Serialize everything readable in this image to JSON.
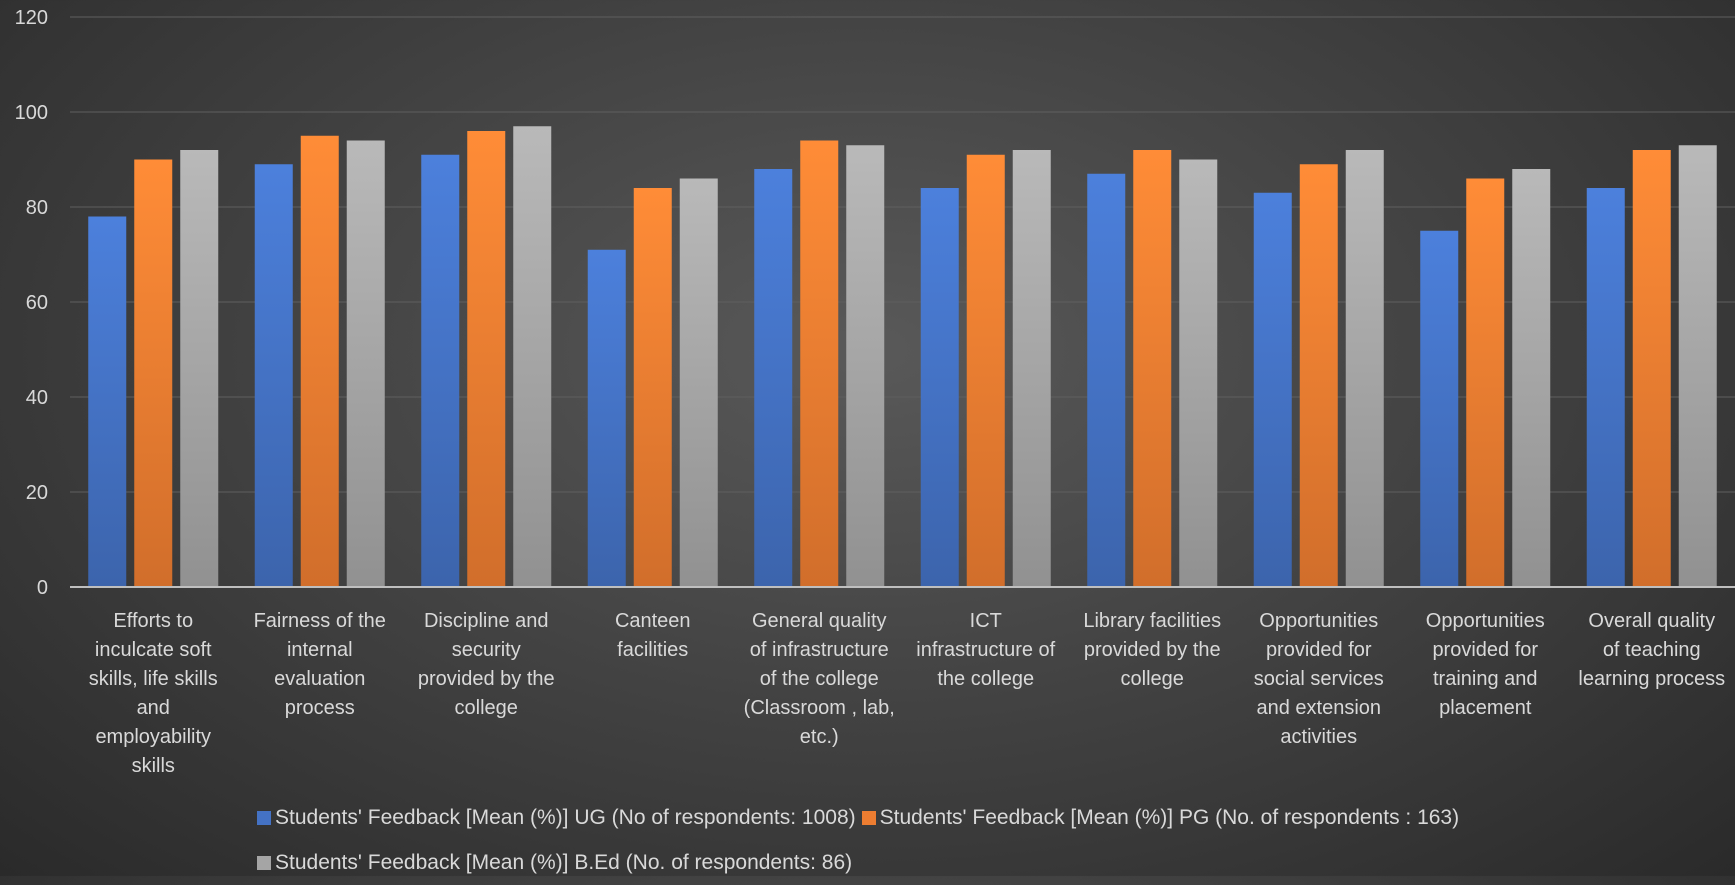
{
  "chart_data": {
    "type": "bar",
    "title": "",
    "xlabel": "",
    "ylabel": "",
    "ylim": [
      0,
      120
    ],
    "yticks": [
      "0",
      "20",
      "40",
      "60",
      "80",
      "100",
      "120"
    ],
    "grid": true,
    "legend_position": "bottom",
    "categories": [
      "Efforts to inculcate soft skills, life skills and employability skills",
      "Fairness of the internal evaluation process",
      "Discipline and security provided by the college",
      "Canteen facilities",
      "General quality of infrastructure of the college (Classroom , lab, etc.)",
      "ICT infrastructure of the college",
      "Library facilities provided by the college",
      "Opportunities provided for social services and extension activities",
      "Opportunities provided for training and placement",
      "Overall quality of teaching learning process"
    ],
    "category_lines": [
      [
        "Efforts to",
        "inculcate soft",
        "skills, life skills",
        "and",
        "employability",
        "skills"
      ],
      [
        "Fairness of the",
        "internal",
        "evaluation",
        "process"
      ],
      [
        "Discipline and",
        "security",
        "provided by the",
        "college"
      ],
      [
        "Canteen",
        "facilities"
      ],
      [
        "General quality",
        "of infrastructure",
        "of the college",
        "(Classroom , lab,",
        "etc.)"
      ],
      [
        "ICT",
        "infrastructure of",
        "the college"
      ],
      [
        "Library facilities",
        "provided by the",
        "college"
      ],
      [
        "Opportunities",
        "provided for",
        "social services",
        "and extension",
        "activities"
      ],
      [
        "Opportunities",
        "provided for",
        "training and",
        "placement"
      ],
      [
        "Overall quality",
        "of teaching",
        "learning process"
      ]
    ],
    "series": [
      {
        "name": "Students' Feedback [Mean (%)] UG (No of respondents: 1008)",
        "color": "#4472c4",
        "values": [
          78,
          89,
          91,
          71,
          88,
          84,
          87,
          83,
          75,
          84
        ]
      },
      {
        "name": "Students' Feedback [Mean (%)] PG (No. of respondents : 163)",
        "color": "#ed7d31",
        "values": [
          90,
          95,
          96,
          84,
          94,
          91,
          92,
          89,
          86,
          92
        ]
      },
      {
        "name": "Students' Feedback [Mean (%)] B.Ed (No. of respondents: 86)",
        "color": "#a5a5a5",
        "values": [
          92,
          94,
          97,
          86,
          93,
          92,
          90,
          92,
          88,
          93
        ]
      }
    ]
  }
}
